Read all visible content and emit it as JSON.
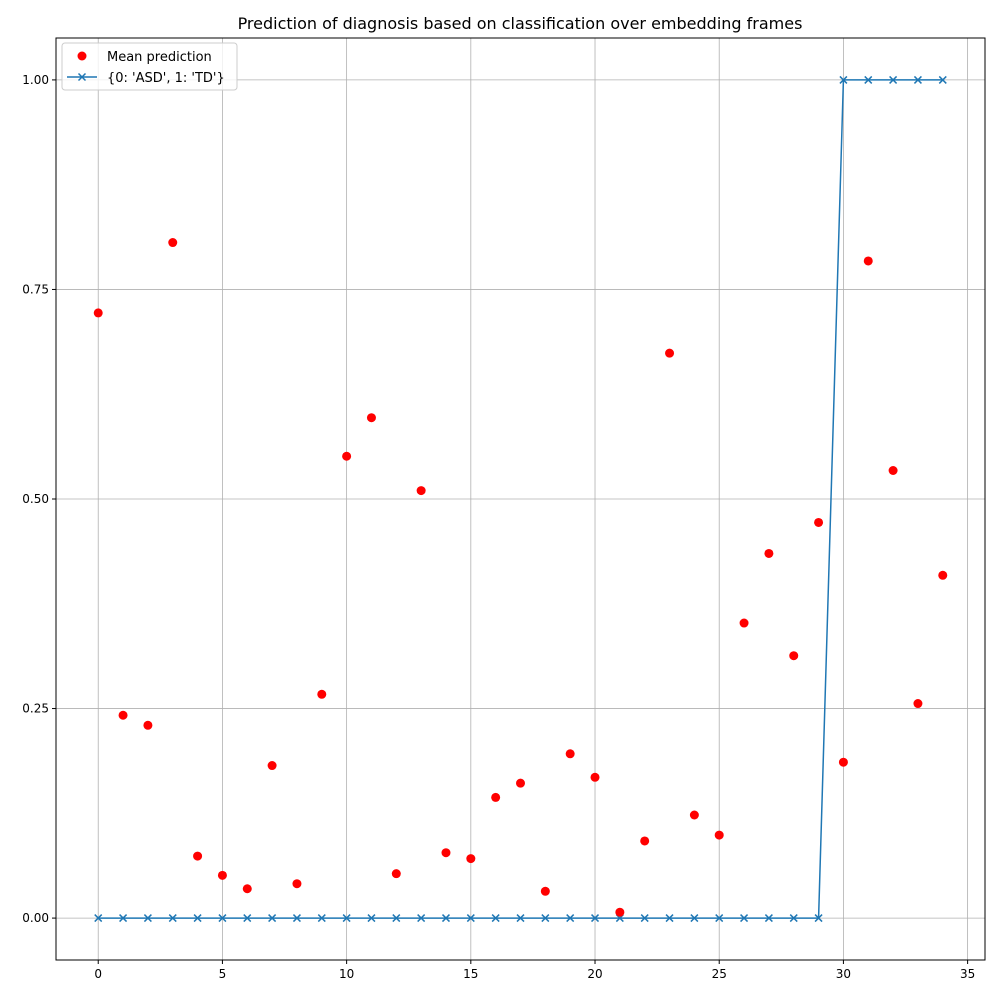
{
  "chart_data": {
    "type": "scatter",
    "title": "Prediction of diagnosis based on classification over embedding frames",
    "xlabel": "",
    "ylabel": "",
    "xlim": [
      -1.7,
      35.7
    ],
    "ylim": [
      -0.05,
      1.05
    ],
    "xticks": [
      0,
      5,
      10,
      15,
      20,
      25,
      30,
      35
    ],
    "xtick_labels": [
      "0",
      "5",
      "10",
      "15",
      "20",
      "25",
      "30",
      "35"
    ],
    "yticks": [
      0.0,
      0.25,
      0.5,
      0.75,
      1.0
    ],
    "ytick_labels": [
      "0.00",
      "0.25",
      "0.50",
      "0.75",
      "1.00"
    ],
    "grid": true,
    "legend_position": "top-left",
    "x": [
      0,
      1,
      2,
      3,
      4,
      5,
      6,
      7,
      8,
      9,
      10,
      11,
      12,
      13,
      14,
      15,
      16,
      17,
      18,
      19,
      20,
      21,
      22,
      23,
      24,
      25,
      26,
      27,
      28,
      29,
      30,
      31,
      32,
      33,
      34
    ],
    "series": [
      {
        "name": "Mean prediction",
        "kind": "scatter",
        "color": "#ff0000",
        "values": [
          0.722,
          0.242,
          0.23,
          0.806,
          0.074,
          0.051,
          0.035,
          0.182,
          0.041,
          0.267,
          0.551,
          0.597,
          0.053,
          0.51,
          0.078,
          0.071,
          0.144,
          0.161,
          0.032,
          0.196,
          0.168,
          0.007,
          0.092,
          0.674,
          0.123,
          0.099,
          0.352,
          0.435,
          0.313,
          0.472,
          0.186,
          0.784,
          0.534,
          0.256,
          0.409
        ]
      },
      {
        "name": "{0: 'ASD', 1: 'TD'}",
        "kind": "line-x",
        "color": "#1f77b4",
        "values": [
          0,
          0,
          0,
          0,
          0,
          0,
          0,
          0,
          0,
          0,
          0,
          0,
          0,
          0,
          0,
          0,
          0,
          0,
          0,
          0,
          0,
          0,
          0,
          0,
          0,
          0,
          0,
          0,
          0,
          0,
          1,
          1,
          1,
          1,
          1
        ]
      }
    ]
  }
}
